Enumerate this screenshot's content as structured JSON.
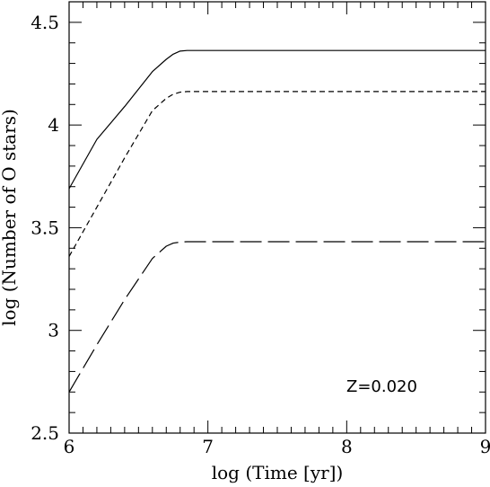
{
  "chart_data": {
    "type": "line",
    "xlabel": "log (Time [yr])",
    "ylabel": "log (Number of O stars)",
    "xlim": [
      6,
      9
    ],
    "ylim": [
      2.5,
      4.6
    ],
    "xticks": [
      6,
      7,
      8,
      9
    ],
    "xtick_labels": [
      "6",
      "7",
      "8",
      "9"
    ],
    "yticks": [
      2.5,
      3,
      3.5,
      4,
      4.5
    ],
    "ytick_labels": [
      "2.5",
      "3",
      "3.5",
      "4",
      "4.5"
    ],
    "grid": false,
    "annotation": "Z=0.020",
    "series": [
      {
        "style": "solid",
        "x": [
          6.0,
          6.2,
          6.4,
          6.6,
          6.7,
          6.75,
          6.8,
          6.85,
          9.0
        ],
        "y": [
          3.69,
          3.93,
          4.09,
          4.26,
          4.32,
          4.345,
          4.36,
          4.363,
          4.363
        ]
      },
      {
        "style": "dashed",
        "x": [
          6.0,
          6.2,
          6.4,
          6.6,
          6.7,
          6.75,
          6.8,
          6.85,
          9.0
        ],
        "y": [
          3.36,
          3.6,
          3.84,
          4.07,
          4.13,
          4.15,
          4.16,
          4.163,
          4.163
        ]
      },
      {
        "style": "long-dashed",
        "x": [
          6.0,
          6.2,
          6.4,
          6.6,
          6.7,
          6.75,
          6.8,
          6.85,
          9.0
        ],
        "y": [
          2.7,
          2.93,
          3.15,
          3.35,
          3.41,
          3.425,
          3.43,
          3.432,
          3.432
        ]
      }
    ]
  }
}
